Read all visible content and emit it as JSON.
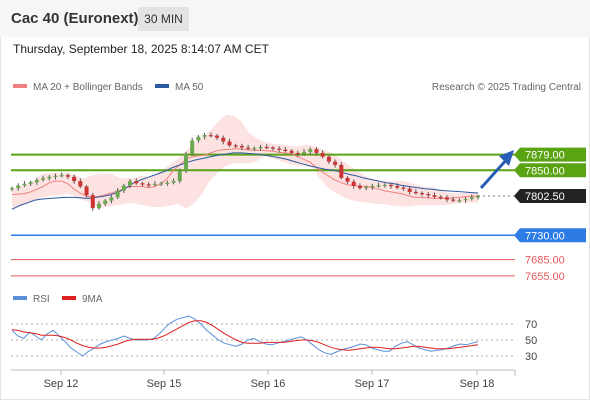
{
  "header": {
    "title": "Cac 40 (Euronext)",
    "timeframe": "30 MIN"
  },
  "datetime": "Thursday, September 18, 2025 8:14:07 AM CET",
  "legend": {
    "ma20": "MA 20 + Bollinger Bands",
    "ma50": "MA 50",
    "credit": "Research © 2025 Trading Central"
  },
  "rsi_legend": {
    "rsi": "RSI",
    "ma": "9MA"
  },
  "colors": {
    "resistance": "#5aa312",
    "support": "#2d7be5",
    "minor_support": "#e85a5a",
    "last": "#222222",
    "ma20": "#f08080",
    "ma50": "#2c5aa0",
    "rsi": "#5b8fd9",
    "rsi_ma": "#e02020",
    "candle_up": "#6aa84f",
    "candle_down": "#cc3333",
    "bands": "#fde2e2",
    "arrow": "#2b5db5"
  },
  "chart_data": {
    "type": "candlestick",
    "x_labels": [
      "Sep 12",
      "Sep 15",
      "Sep 16",
      "Sep 17",
      "Sep 18"
    ],
    "ylim": [
      7640,
      7965
    ],
    "levels": [
      {
        "value": 7879.0,
        "label": "7879.00",
        "kind": "resistance"
      },
      {
        "value": 7850.0,
        "label": "7850.00",
        "kind": "resistance"
      },
      {
        "value": 7802.5,
        "label": "7802.50",
        "kind": "last"
      },
      {
        "value": 7730.0,
        "label": "7730.00",
        "kind": "support"
      },
      {
        "value": 7685.0,
        "label": "7685.00",
        "kind": "minor"
      },
      {
        "value": 7655.0,
        "label": "7655.00",
        "kind": "minor"
      }
    ],
    "close": [
      7817,
      7822,
      7825,
      7828,
      7832,
      7835,
      7838,
      7840,
      7841,
      7838,
      7830,
      7820,
      7804,
      7780,
      7788,
      7794,
      7800,
      7812,
      7822,
      7830,
      7826,
      7824,
      7823,
      7825,
      7826,
      7827,
      7830,
      7850,
      7880,
      7905,
      7912,
      7915,
      7914,
      7910,
      7903,
      7896,
      7895,
      7892,
      7890,
      7891,
      7893,
      7892,
      7890,
      7888,
      7886,
      7882,
      7880,
      7884,
      7889,
      7882,
      7875,
      7866,
      7860,
      7836,
      7829,
      7821,
      7817,
      7819,
      7821,
      7822,
      7823,
      7821,
      7818,
      7816,
      7810,
      7808,
      7806,
      7804,
      7801,
      7800,
      7796,
      7794,
      7795,
      7797,
      7800,
      7802
    ],
    "ma20": [
      7805,
      7806,
      7807,
      7810,
      7815,
      7820,
      7827,
      7830,
      7830,
      7825,
      7815,
      7808,
      7802,
      7800,
      7802,
      7805,
      7808,
      7812,
      7816,
      7820,
      7820,
      7820,
      7818,
      7820,
      7825,
      7835,
      7850,
      7860,
      7870,
      7875,
      7877,
      7878,
      7882,
      7886,
      7888,
      7889,
      7890,
      7889,
      7888,
      7887,
      7887,
      7886,
      7885,
      7883,
      7882,
      7880,
      7875,
      7870,
      7865,
      7855,
      7846,
      7839,
      7832,
      7827,
      7823,
      7822,
      7821,
      7820,
      7818,
      7815,
      7812,
      7810,
      7808,
      7806,
      7802,
      7800,
      7800,
      7799,
      7798,
      7798,
      7798,
      7799,
      7800,
      7801,
      7802,
      7802
    ],
    "bb_upper": [
      7815,
      7820,
      7823,
      7830,
      7842,
      7845,
      7845,
      7845,
      7845,
      7840,
      7835,
      7840,
      7843,
      7843,
      7843,
      7836,
      7835,
      7835,
      7840,
      7838,
      7842,
      7852,
      7860,
      7870,
      7882,
      7895,
      7905,
      7915,
      7928,
      7943,
      7953,
      7950,
      7940,
      7920,
      7910,
      7904,
      7900,
      7898,
      7897,
      7894,
      7894,
      7897,
      7896,
      7890,
      7885,
      7879,
      7869,
      7859,
      7850,
      7841,
      7835,
      7832,
      7830,
      7830,
      7831,
      7829,
      7825,
      7822,
      7819,
      7818,
      7812,
      7808,
      7808,
      7808,
      7810,
      7810
    ],
    "bb_lower": [
      7780,
      7784,
      7788,
      7795,
      7800,
      7803,
      7804,
      7808,
      7801,
      7795,
      7790,
      7780,
      7783,
      7785,
      7787,
      7790,
      7787,
      7784,
      7782,
      7782,
      7785,
      7788,
      7780,
      7788,
      7805,
      7830,
      7845,
      7857,
      7863,
      7863,
      7863,
      7867,
      7876,
      7872,
      7867,
      7862,
      7859,
      7858,
      7855,
      7835,
      7818,
      7808,
      7800,
      7795,
      7792,
      7790,
      7788,
      7788,
      7785,
      7784,
      7783,
      7785,
      7785,
      7786,
      7785,
      7786,
      7788,
      7790,
      7790,
      7790
    ],
    "ma50": [
      7778,
      7785,
      7790,
      7795,
      7797,
      7798,
      7799,
      7800,
      7800,
      7799,
      7798,
      7800,
      7802,
      7805,
      7810,
      7818,
      7827,
      7833,
      7838,
      7843,
      7848,
      7855,
      7860,
      7865,
      7869,
      7872,
      7875,
      7878,
      7880,
      7882,
      7882,
      7881,
      7880,
      7878,
      7876,
      7873,
      7870,
      7866,
      7862,
      7858,
      7855,
      7852,
      7850,
      7847,
      7843,
      7840,
      7836,
      7833,
      7830,
      7827,
      7825,
      7822,
      7820,
      7818,
      7816,
      7815,
      7813,
      7812,
      7811,
      7810,
      7809,
      7808
    ],
    "rsi": {
      "levels": [
        70,
        50,
        30
      ],
      "ylim": [
        15,
        85
      ],
      "values": [
        62,
        55,
        52,
        60,
        55,
        50,
        58,
        62,
        55,
        48,
        40,
        35,
        30,
        36,
        40,
        45,
        48,
        50,
        52,
        55,
        52,
        50,
        50,
        50,
        52,
        58,
        66,
        72,
        76,
        78,
        80,
        76,
        70,
        62,
        56,
        50,
        46,
        44,
        42,
        45,
        50,
        52,
        48,
        45,
        44,
        46,
        48,
        50,
        52,
        54,
        50,
        44,
        38,
        34,
        32,
        35,
        38,
        40,
        42,
        45,
        44,
        40,
        38,
        36,
        36,
        42,
        46,
        48,
        44,
        40,
        38,
        36,
        37,
        38,
        40,
        43,
        45,
        44,
        46,
        48
      ],
      "ma9": [
        63,
        62,
        60,
        59,
        58,
        56,
        56,
        56,
        55,
        53,
        50,
        46,
        43,
        41,
        40,
        40,
        41,
        43,
        45,
        48,
        50,
        51,
        51,
        51,
        51,
        53,
        56,
        60,
        64,
        68,
        72,
        74,
        74,
        72,
        68,
        63,
        58,
        54,
        50,
        47,
        46,
        46,
        46,
        47,
        47,
        47,
        47,
        48,
        49,
        50,
        50,
        49,
        47,
        44,
        41,
        39,
        38,
        37,
        38,
        39,
        40,
        41,
        41,
        40,
        39,
        39,
        40,
        41,
        42,
        42,
        41,
        40,
        39,
        39,
        39,
        40,
        41,
        42,
        43,
        44
      ]
    }
  }
}
